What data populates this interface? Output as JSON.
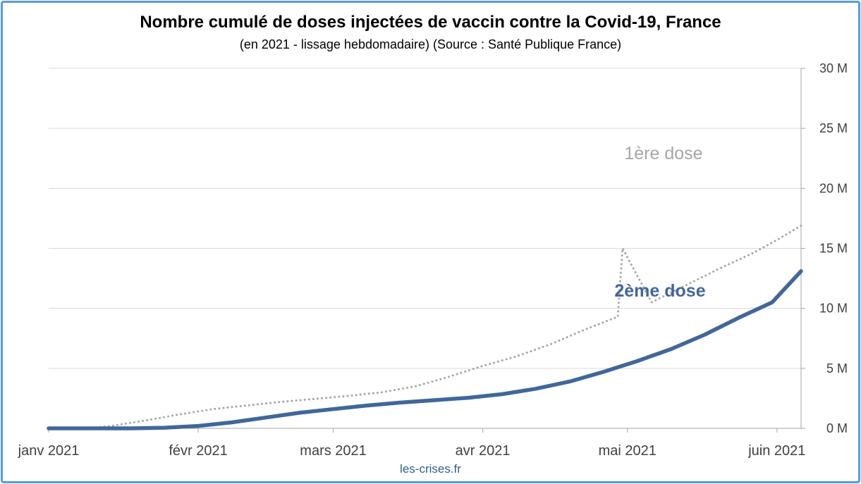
{
  "chart_data": {
    "type": "line",
    "title": "Nombre cumulé de doses injectées de vaccin contre la Covid-19, France",
    "subtitle": "(en 2021 - lissage hebdomadaire) (Source : Santé Publique France)",
    "x_domain": [
      "2021-01-01",
      "2021-06-06"
    ],
    "x_ticks": [
      {
        "date": "2021-01-01",
        "label": "janv 2021"
      },
      {
        "date": "2021-02-01",
        "label": "févr 2021"
      },
      {
        "date": "2021-03-01",
        "label": "mars 2021"
      },
      {
        "date": "2021-04-01",
        "label": "avr 2021"
      },
      {
        "date": "2021-05-01",
        "label": "mai 2021"
      },
      {
        "date": "2021-06-01",
        "label": "juin 2021"
      }
    ],
    "ylim": [
      0,
      30000000
    ],
    "y_ticks": [
      {
        "value": 0,
        "label": "0 M"
      },
      {
        "value": 5000000,
        "label": "5 M"
      },
      {
        "value": 10000000,
        "label": "10 M"
      },
      {
        "value": 15000000,
        "label": "15 M"
      },
      {
        "value": 20000000,
        "label": "20 M"
      },
      {
        "value": 25000000,
        "label": "25 M"
      },
      {
        "value": 30000000,
        "label": "30 M"
      }
    ],
    "y_axis_side": "right",
    "grid": true,
    "series": [
      {
        "name": "1ère dose",
        "color": "#a6a6a6",
        "style": "dotted",
        "points": [
          [
            "2021-01-01",
            0
          ],
          [
            "2021-01-09",
            0
          ],
          [
            "2021-01-14",
            200000
          ],
          [
            "2021-01-21",
            650000
          ],
          [
            "2021-01-28",
            1150000
          ],
          [
            "2021-02-04",
            1600000
          ],
          [
            "2021-02-11",
            1900000
          ],
          [
            "2021-02-18",
            2200000
          ],
          [
            "2021-02-25",
            2450000
          ],
          [
            "2021-03-04",
            2700000
          ],
          [
            "2021-03-11",
            3000000
          ],
          [
            "2021-03-18",
            3500000
          ],
          [
            "2021-03-25",
            4300000
          ],
          [
            "2021-04-01",
            5200000
          ],
          [
            "2021-04-08",
            6000000
          ],
          [
            "2021-04-15",
            7000000
          ],
          [
            "2021-04-22",
            8200000
          ],
          [
            "2021-04-29",
            9300000
          ],
          [
            "2021-05-06",
            10500000
          ],
          [
            "2021-05-13",
            11900000
          ],
          [
            "2021-05-20",
            13300000
          ],
          [
            "2021-05-27",
            14600000
          ],
          [
            "2021-06-01",
            15700000
          ],
          [
            "2021-06-06",
            16900000
          ],
          [
            "2021-04-30",
            15000000
          ]
        ]
      },
      {
        "name": "2ème dose",
        "color": "#41679a",
        "style": "solid",
        "points": [
          [
            "2021-01-01",
            0
          ],
          [
            "2021-01-18",
            0
          ],
          [
            "2021-01-25",
            50000
          ],
          [
            "2021-02-01",
            200000
          ],
          [
            "2021-02-08",
            500000
          ],
          [
            "2021-02-15",
            900000
          ],
          [
            "2021-02-22",
            1300000
          ],
          [
            "2021-03-01",
            1600000
          ],
          [
            "2021-03-08",
            1900000
          ],
          [
            "2021-03-15",
            2150000
          ],
          [
            "2021-03-22",
            2350000
          ],
          [
            "2021-03-29",
            2550000
          ],
          [
            "2021-04-05",
            2850000
          ],
          [
            "2021-04-12",
            3300000
          ],
          [
            "2021-04-19",
            3900000
          ],
          [
            "2021-04-26",
            4700000
          ],
          [
            "2021-05-03",
            5600000
          ],
          [
            "2021-05-10",
            6600000
          ],
          [
            "2021-05-17",
            7800000
          ],
          [
            "2021-05-24",
            9200000
          ],
          [
            "2021-05-31",
            10500000
          ],
          [
            "2021-06-06",
            13100000
          ]
        ]
      }
    ],
    "annotations": [
      {
        "text": "1ère dose",
        "series": "1ère dose"
      },
      {
        "text": "2ème dose",
        "series": "2ème dose"
      }
    ]
  },
  "watermark": "les-crises.fr"
}
